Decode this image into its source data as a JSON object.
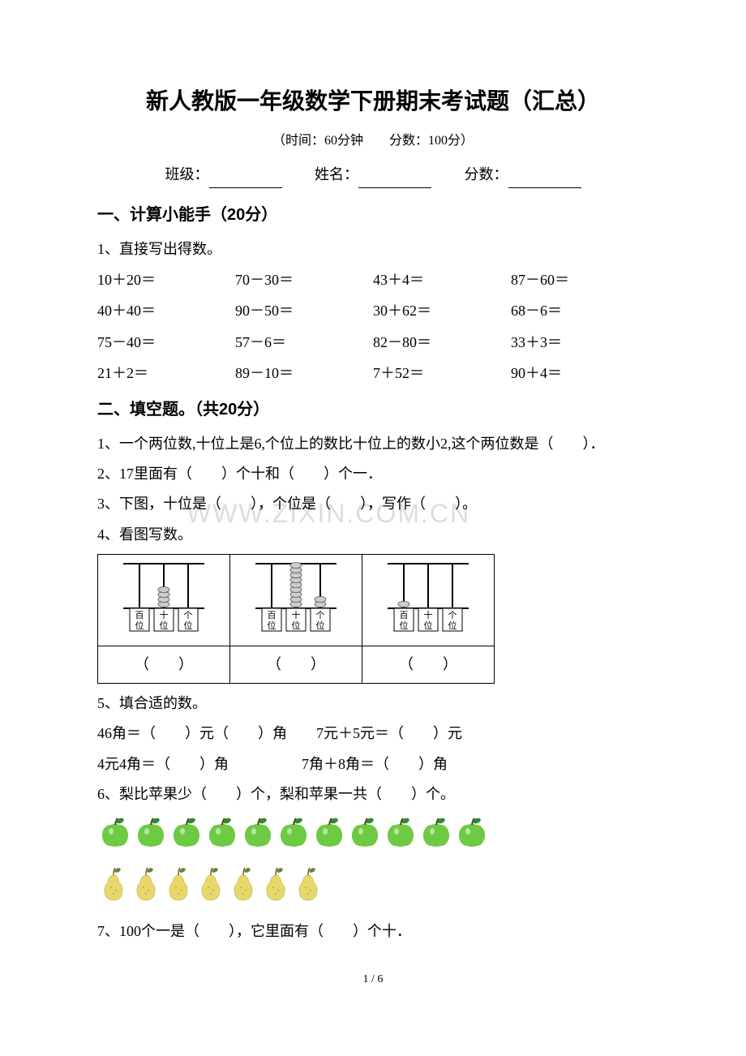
{
  "title": "新人教版一年级数学下册期末考试题（汇总）",
  "subtitle": "（时间：60分钟　　分数：100分）",
  "info": {
    "class_label": "班级：",
    "name_label": "姓名：",
    "score_label": "分数："
  },
  "section1": {
    "title": "一、计算小能手（20分）",
    "q1": "1、直接写出得数。",
    "rows": [
      [
        "10＋20＝",
        "70－30＝",
        "43＋4＝",
        "87－60＝"
      ],
      [
        "40＋40＝",
        "90－50＝",
        "30＋62＝",
        "68－6＝"
      ],
      [
        "75－40＝",
        "57－6＝",
        "82－80＝",
        "33＋3＝"
      ],
      [
        "21＋2＝",
        "89－10＝",
        "7＋52＝",
        "90＋4＝"
      ]
    ]
  },
  "section2": {
    "title": "二、填空题。（共20分）",
    "q1": "1、一个两位数,十位上是6,个位上的数比十位上的数小2,这个两位数是（　　）．",
    "q2": "2、17里面有（　　）个十和（　　）个一．",
    "q3": "3、下图，十位是（　　），个位是（　　），写作（　　）。",
    "q4": "4、看图写数。",
    "q5": "5、填合适的数。",
    "q5_line1": "46角＝（　　）元（　　）角　　7元＋5元＝（　　）元",
    "q5_line2": "4元4角＝（　　）角　　　　　7角＋8角＝（　　）角",
    "q6": "6、梨比苹果少（　　）个，梨和苹果一共（　　）个。",
    "q7": "7、100个一是（　　），它里面有（　　）个十．"
  },
  "abacus": {
    "labels": {
      "bai": "百",
      "shi": "十",
      "ge": "个",
      "wei": "位"
    },
    "answer_blank": "（　　）",
    "counts": [
      [
        0,
        4,
        0
      ],
      [
        0,
        9,
        2
      ],
      [
        1,
        0,
        0
      ]
    ]
  },
  "fruits": {
    "apple_count": 11,
    "pear_count": 7,
    "apple_colors": {
      "body": "#6ec943",
      "leaf": "#2f8a2f",
      "stem": "#5b3a1a"
    },
    "pear_colors": {
      "body": "#e8d76a",
      "leaf": "#5a8a3a",
      "stem": "#7a5a2a"
    }
  },
  "footer": "1 / 6",
  "watermark": "WWW.ZIXIN.COM.CN"
}
